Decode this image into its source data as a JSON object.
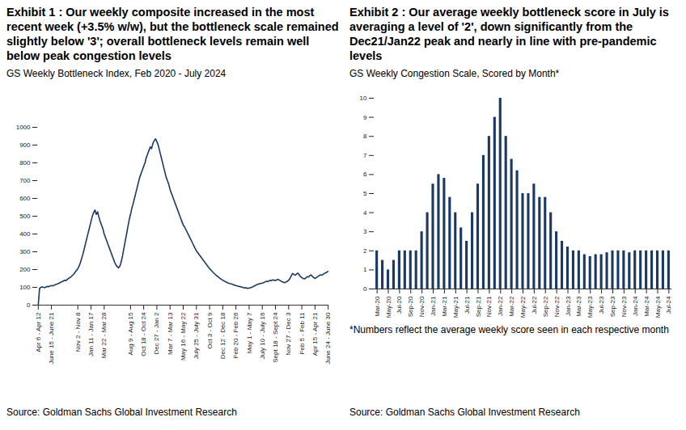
{
  "chart_data": [
    {
      "type": "line",
      "title": "Exhibit 1 : Our weekly composite increased in the most recent week (+3.5% w/w), but the bottleneck scale remained slightly below '3'; overall bottleneck levels remain well below peak congestion levels",
      "subtitle": "GS Weekly Bottleneck Index, Feb 2020 - July 2024",
      "source": "Source: Goldman Sachs Global Investment Research",
      "color": "#1b3a63",
      "grid": false,
      "ylim": [
        0,
        1000
      ],
      "yticks": [
        0,
        100,
        200,
        300,
        400,
        500,
        600,
        700,
        800,
        900,
        1000
      ],
      "categories": [
        "Apr 6 - Apr 12",
        null,
        null,
        null,
        null,
        null,
        null,
        null,
        null,
        null,
        "June 15 - June 21",
        null,
        null,
        null,
        null,
        null,
        null,
        null,
        null,
        null,
        null,
        null,
        null,
        null,
        null,
        null,
        null,
        null,
        null,
        null,
        "Nov 2 - Nov 8",
        null,
        null,
        null,
        null,
        null,
        null,
        null,
        null,
        null,
        "Jan 11 - Jan 17",
        null,
        null,
        null,
        null,
        null,
        null,
        null,
        null,
        null,
        "Mar 22 - Mar 28",
        null,
        null,
        null,
        null,
        null,
        null,
        null,
        null,
        null,
        null,
        null,
        null,
        null,
        null,
        null,
        null,
        null,
        null,
        null,
        "Aug 9 - Aug 15",
        null,
        null,
        null,
        null,
        null,
        null,
        null,
        null,
        null,
        "Oct 18 - Oct 24",
        null,
        null,
        null,
        null,
        null,
        null,
        null,
        null,
        null,
        "Dec 27 - Jan 2",
        null,
        null,
        null,
        null,
        null,
        null,
        null,
        null,
        null,
        "Mar 7 - Mar 13",
        null,
        null,
        null,
        null,
        null,
        null,
        null,
        null,
        null,
        "May 16 - May 22",
        null,
        null,
        null,
        null,
        null,
        null,
        null,
        null,
        null,
        "July 25 - July 31",
        null,
        null,
        null,
        null,
        null,
        null,
        null,
        null,
        null,
        "Oct 3 - Oct 9",
        null,
        null,
        null,
        null,
        null,
        null,
        null,
        null,
        null,
        "Dec 12 - Dec 18",
        null,
        null,
        null,
        null,
        null,
        null,
        null,
        null,
        null,
        "Feb 20 - Feb 26",
        null,
        null,
        null,
        null,
        null,
        null,
        null,
        null,
        null,
        "May 1 - May 7",
        null,
        null,
        null,
        null,
        null,
        null,
        null,
        null,
        null,
        "July 10 - July 16",
        null,
        null,
        null,
        null,
        null,
        null,
        null,
        null,
        null,
        "Sept 18 - Sept 24",
        null,
        null,
        null,
        null,
        null,
        null,
        null,
        null,
        null,
        "Nov 27 - Dec 3",
        null,
        null,
        null,
        null,
        null,
        null,
        null,
        null,
        null,
        "Feb 5 - Feb 11",
        null,
        null,
        null,
        null,
        null,
        null,
        null,
        null,
        null,
        "Apr 15 - Apr 21",
        null,
        null,
        null,
        null,
        null,
        null,
        null,
        null,
        null,
        "June 24 - June 30"
      ],
      "values": [
        2,
        95,
        100,
        102,
        100,
        98,
        103,
        105,
        104,
        108,
        110,
        108,
        112,
        115,
        118,
        120,
        125,
        128,
        132,
        135,
        140,
        138,
        145,
        150,
        155,
        160,
        168,
        175,
        185,
        195,
        205,
        220,
        240,
        265,
        290,
        320,
        350,
        380,
        410,
        440,
        470,
        500,
        520,
        535,
        510,
        525,
        495,
        470,
        450,
        430,
        400,
        380,
        360,
        340,
        320,
        300,
        280,
        260,
        240,
        225,
        215,
        210,
        220,
        245,
        280,
        320,
        360,
        400,
        440,
        480,
        510,
        545,
        570,
        600,
        630,
        660,
        690,
        720,
        740,
        760,
        780,
        800,
        830,
        850,
        870,
        890,
        880,
        910,
        925,
        935,
        920,
        900,
        870,
        840,
        810,
        780,
        750,
        720,
        700,
        680,
        650,
        630,
        610,
        590,
        570,
        550,
        530,
        510,
        490,
        470,
        450,
        440,
        425,
        410,
        395,
        380,
        365,
        350,
        335,
        320,
        305,
        295,
        285,
        275,
        265,
        255,
        245,
        235,
        225,
        215,
        205,
        198,
        190,
        182,
        175,
        168,
        162,
        156,
        150,
        145,
        140,
        136,
        132,
        128,
        125,
        122,
        120,
        118,
        115,
        112,
        110,
        108,
        106,
        104,
        102,
        100,
        98,
        97,
        96,
        95,
        96,
        98,
        100,
        104,
        108,
        112,
        115,
        118,
        120,
        122,
        124,
        126,
        130,
        134,
        132,
        136,
        140,
        138,
        142,
        140,
        138,
        142,
        145,
        140,
        136,
        132,
        128,
        126,
        130,
        134,
        140,
        150,
        165,
        178,
        172,
        168,
        175,
        180,
        170,
        160,
        155,
        150,
        148,
        152,
        160,
        158,
        165,
        170,
        162,
        155,
        150,
        155,
        160,
        165,
        170,
        168,
        172,
        178,
        182,
        185,
        190
      ]
    },
    {
      "type": "bar",
      "title": "Exhibit 2 : Our average weekly bottleneck score in July is averaging a level of '2', down significantly from the Dec21/Jan22 peak and nearly in line with pre-pandemic levels",
      "subtitle": "GS Weekly Congestion Scale, Scored by Month*",
      "note": "*Numbers reflect the average weekly score seen in each respective month",
      "source": "Source: Goldman Sachs Global Investment Research",
      "color": "#1b3a63",
      "grid": false,
      "ylim": [
        0,
        10
      ],
      "yticks": [
        0,
        1,
        2,
        3,
        4,
        5,
        6,
        7,
        8,
        9,
        10
      ],
      "categories": [
        "Mar-20",
        null,
        "May-20",
        null,
        "Jul-20",
        null,
        "Sep-20",
        null,
        "Nov-20",
        null,
        "Jan-21",
        null,
        "Mar-21",
        null,
        "May-21",
        null,
        "Jul-21",
        null,
        "Sep-21",
        null,
        "Nov-21",
        null,
        "Jan-22",
        null,
        "Mar-22",
        null,
        "May-22",
        null,
        "Jul-22",
        null,
        "Sep-22",
        null,
        "Nov-22",
        null,
        "Jan-23",
        null,
        "Mar-23",
        null,
        "May-23",
        null,
        "Jul-23",
        null,
        "Sep-23",
        null,
        "Nov-23",
        null,
        "Jan-24",
        null,
        "Mar-24",
        null,
        "May-24",
        null,
        "Jul-24"
      ],
      "values": [
        2,
        1.5,
        1,
        1.5,
        2,
        2,
        2,
        2,
        3,
        4,
        5.5,
        6,
        5.8,
        4.8,
        4,
        3.2,
        2.5,
        4,
        5.5,
        7,
        8,
        9,
        10,
        8,
        6.8,
        6.2,
        5,
        5,
        5.5,
        4.8,
        4.8,
        4,
        3,
        2.5,
        2.2,
        2,
        2,
        1.8,
        1.7,
        1.8,
        1.8,
        1.9,
        2,
        2,
        2,
        1.9,
        2,
        2,
        2,
        2,
        2,
        2,
        2
      ]
    }
  ]
}
